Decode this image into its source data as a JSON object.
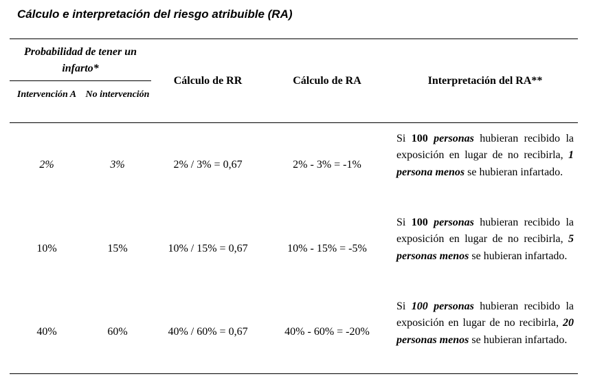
{
  "title": "Cálculo e interpretación del riesgo atribuible (RA)",
  "header": {
    "prob_group": "Probabilidad de tener un infarto*",
    "col_a": "Intervención A",
    "col_no": "No intervención",
    "col_rr": "Cálculo de RR",
    "col_ra": "Cálculo de RA",
    "col_interp": "Interpretación del RA**"
  },
  "rows": [
    {
      "a": "2%",
      "no": "3%",
      "rr": "2% / 3% = 0,67",
      "ra": "2% - 3% = -1%",
      "interp": {
        "p1": "Si ",
        "n": "100",
        "p2": " ",
        "personas": "personas",
        "p3": " hubieran recibido la exposición en lugar de no recibirla, ",
        "result": "1 persona menos",
        "p4": " se hubieran infartado."
      }
    },
    {
      "a": "10%",
      "no": "15%",
      "rr": "10% / 15% = 0,67",
      "ra": "10% - 15% = -5%",
      "interp": {
        "p1": "Si ",
        "n": "100",
        "p2": " ",
        "personas": "personas",
        "p3": " hubieran recibido la exposición en lugar de no recibirla, ",
        "result": "5 personas menos",
        "p4": " se hubieran infartado."
      }
    },
    {
      "a": "40%",
      "no": "60%",
      "rr": "40% / 60% = 0,67",
      "ra": "40% - 60% = -20%",
      "interp": {
        "p1": "Si ",
        "n": "100 personas",
        "p2": "",
        "personas": "",
        "p3": " hubieran recibido la exposición en lugar de no recibirla, ",
        "result": "20 personas menos",
        "p4": " se hubieran infartado."
      }
    }
  ]
}
